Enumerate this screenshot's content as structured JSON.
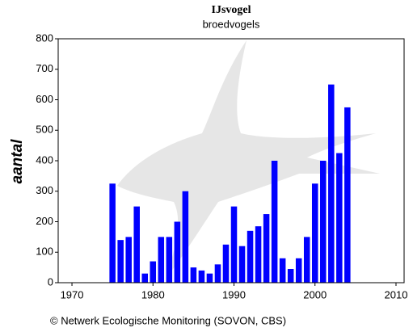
{
  "chart_data": {
    "type": "bar",
    "title": "IJsvogel",
    "subtitle": "broedvogels",
    "y_label": "aantal",
    "footer": "© Netwerk Ecologische Monitoring (SOVON, CBS)",
    "x": [
      1975,
      1976,
      1977,
      1978,
      1979,
      1980,
      1981,
      1982,
      1983,
      1984,
      1985,
      1986,
      1987,
      1988,
      1989,
      1990,
      1991,
      1992,
      1993,
      1994,
      1995,
      1996,
      1997,
      1998,
      1999,
      2000,
      2001,
      2002,
      2003,
      2004
    ],
    "values": [
      325,
      140,
      150,
      250,
      30,
      70,
      150,
      150,
      200,
      300,
      50,
      40,
      30,
      60,
      125,
      250,
      120,
      170,
      185,
      225,
      400,
      80,
      45,
      80,
      150,
      325,
      400,
      650,
      425,
      575
    ],
    "color": "#0000ff",
    "xlim": [
      1968.3,
      2011
    ],
    "xticks": [
      1970,
      1980,
      1990,
      2000,
      2010
    ],
    "ylim": [
      0,
      800
    ],
    "yticks": [
      0,
      100,
      200,
      300,
      400,
      500,
      600,
      700,
      800
    ],
    "grid": false
  }
}
